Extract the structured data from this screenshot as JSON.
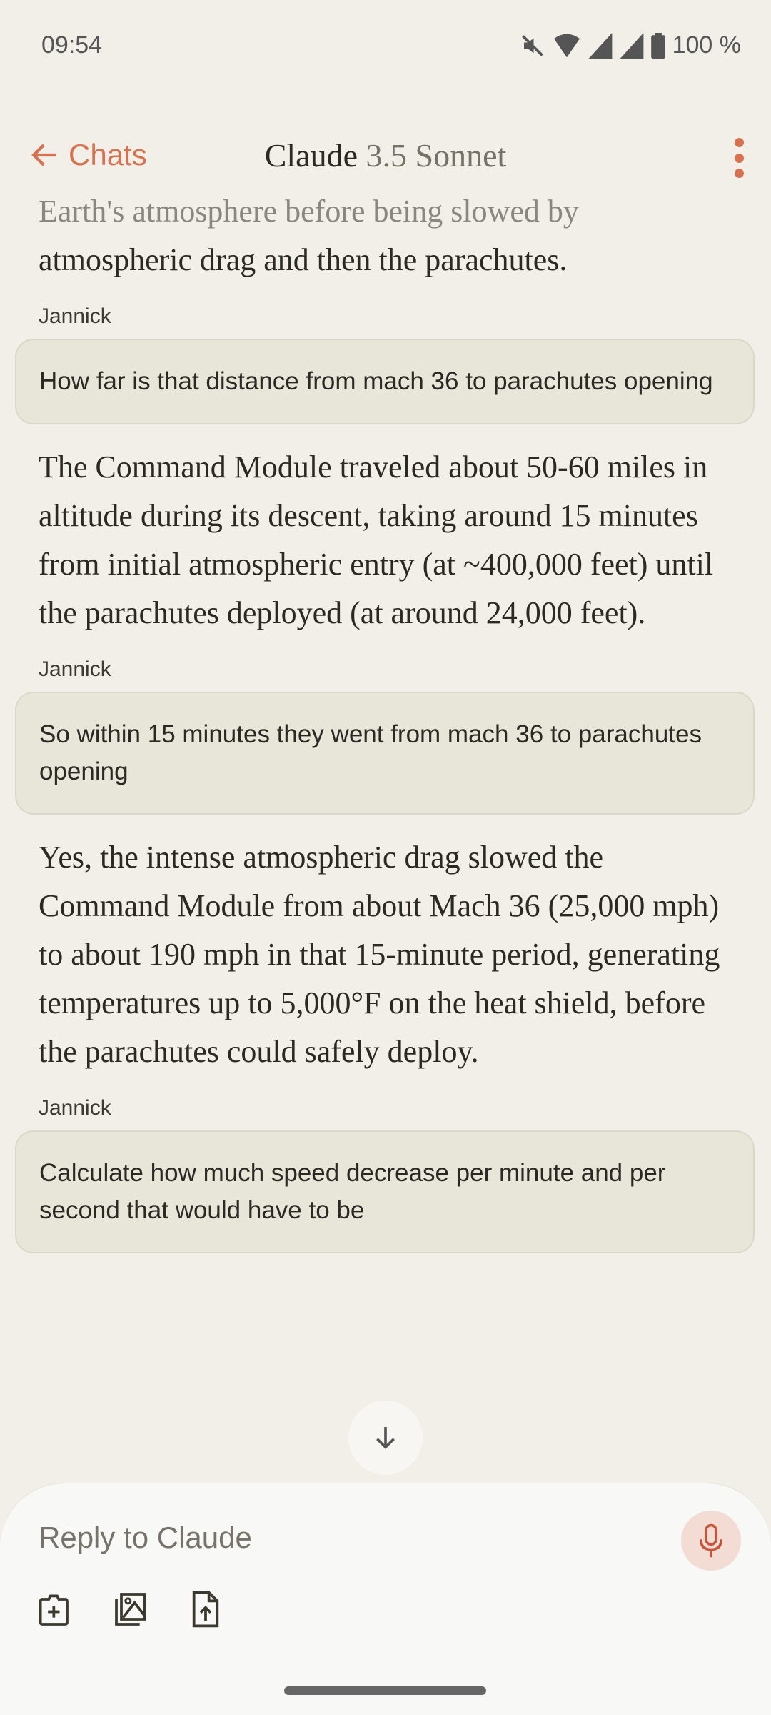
{
  "status_bar": {
    "time": "09:54",
    "battery": "100 %",
    "icons": [
      "mute-icon",
      "wifi-icon",
      "signal-icon",
      "signal-icon",
      "battery-icon"
    ]
  },
  "header": {
    "back_label": "Chats",
    "title_app": "Claude",
    "title_model": "3.5 Sonnet"
  },
  "messages": {
    "partial_top": "Earth's atmosphere before being slowed by",
    "prev_tail": "atmospheric drag and then the parachutes.",
    "items": [
      {
        "sender": "Jannick",
        "text": "How far is that distance from mach 36 to parachutes opening"
      },
      {
        "response": "The Command Module traveled about 50-60 miles in altitude during its descent, taking around 15 minutes from initial atmospheric entry (at ~400,000 feet) until the parachutes deployed (at around 24,000 feet)."
      },
      {
        "sender": "Jannick",
        "text": "So within 15 minutes they went from mach 36 to parachutes opening"
      },
      {
        "response": "Yes, the intense atmospheric drag slowed the Command Module from about Mach 36 (25,000 mph) to about 190 mph in that 15-minute period, generating temperatures up to 5,000°F on the heat shield, before the parachutes could safely deploy."
      },
      {
        "sender": "Jannick",
        "text": "Calculate how much speed decrease per minute and per second that would have to be"
      }
    ]
  },
  "composer": {
    "placeholder": "Reply to Claude"
  },
  "colors": {
    "accent": "#d9704f",
    "background": "#f1efe7",
    "bubble": "#e8e5d9"
  }
}
